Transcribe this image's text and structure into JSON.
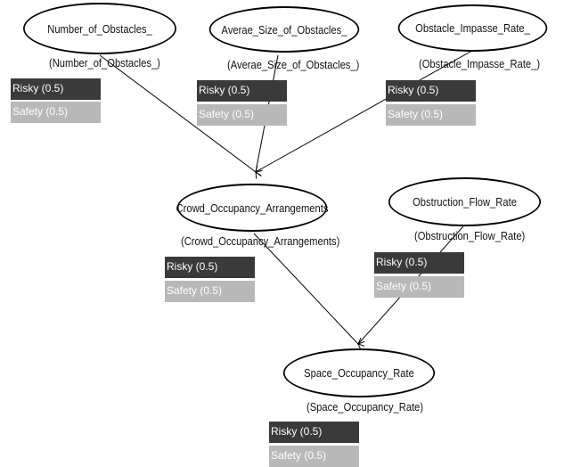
{
  "nodes": {
    "number_of_obstacles": {
      "title": "Number_of_Obstacles_",
      "subtitle": "(Number_of_Obstacles_)",
      "states": [
        {
          "label": "Risky (0.5)"
        },
        {
          "label": "Safety (0.5)"
        }
      ]
    },
    "average_size_of_obstacles": {
      "title": "Averae_Size_of_Obstacles_",
      "subtitle": "(Averae_Size_of_Obstacles_)",
      "states": [
        {
          "label": "Risky (0.5)"
        },
        {
          "label": "Safety (0.5)"
        }
      ]
    },
    "obstacle_impasse_rate": {
      "title": "Obstacle_Impasse_Rate_",
      "subtitle": "(Obstacle_Impasse_Rate_)",
      "states": [
        {
          "label": "Risky (0.5)"
        },
        {
          "label": "Safety (0.5)"
        }
      ]
    },
    "crowd_occupancy_arrangements": {
      "title": "Crowd_Occupancy_Arrangements",
      "subtitle": "(Crowd_Occupancy_Arrangements)",
      "states": [
        {
          "label": "Risky (0.5)"
        },
        {
          "label": "Safety (0.5)"
        }
      ]
    },
    "obstruction_flow_rate": {
      "title": "Obstruction_Flow_Rate",
      "subtitle": "(Obstruction_Flow_Rate)",
      "states": [
        {
          "label": "Risky (0.5)"
        },
        {
          "label": "Safety (0.5)"
        }
      ]
    },
    "space_occupancy_rate": {
      "title": "Space_Occupancy_Rate",
      "subtitle": "(Space_Occupancy_Rate)",
      "states": [
        {
          "label": "Risky (0.5)"
        },
        {
          "label": "Safety (0.5)"
        }
      ]
    }
  },
  "colors": {
    "risky": "#3a3a3a",
    "safety": "#b8b8b8",
    "edge": "#000000"
  }
}
